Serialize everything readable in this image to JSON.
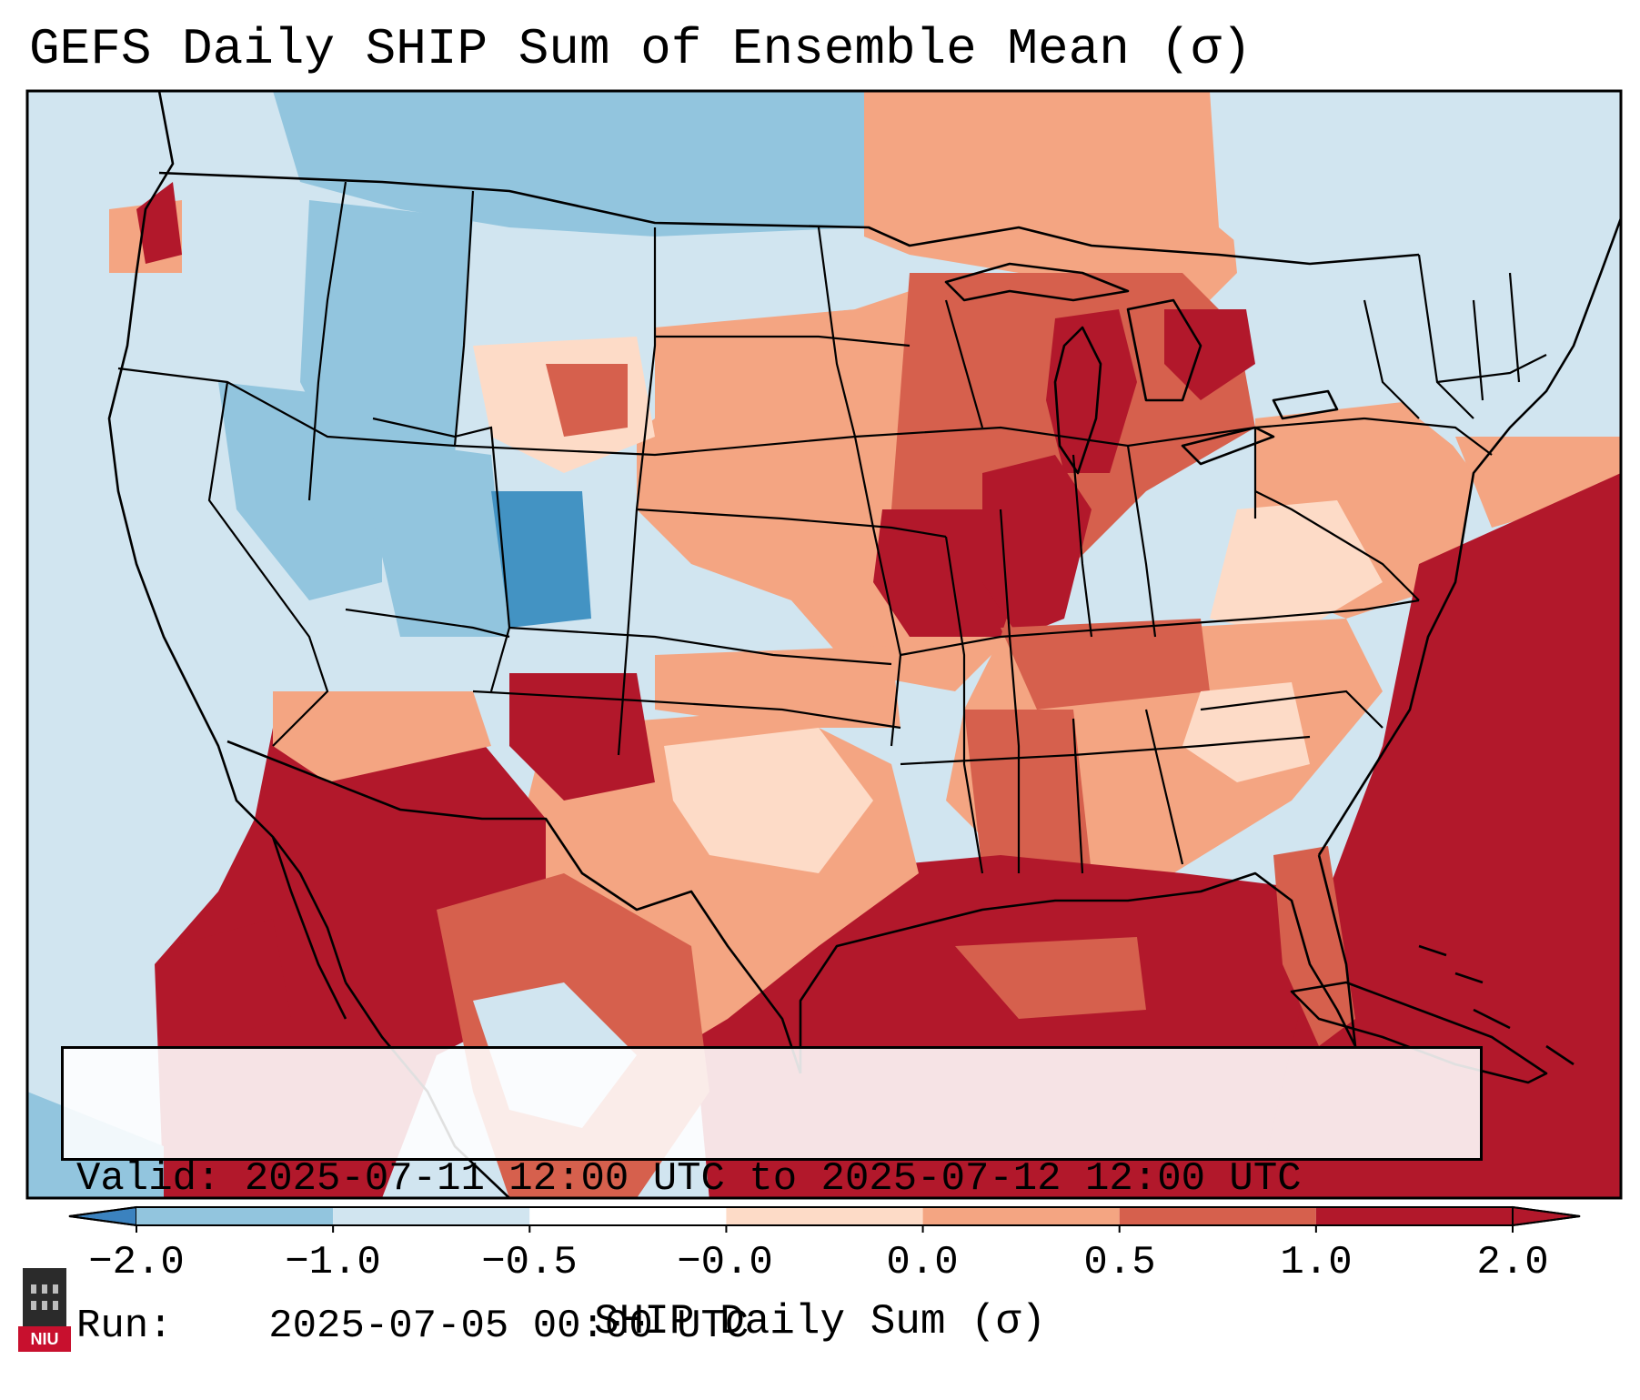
{
  "title": "GEFS Daily SHIP Sum of Ensemble Mean (σ)",
  "info": {
    "valid_label": "Valid:",
    "valid_value": "2025-07-11 12:00 UTC to 2025-07-12 12:00 UTC",
    "run_label": "Run:",
    "run_value": "2025-07-05 00:00 UTC"
  },
  "colorbar": {
    "label": "SHIP Daily Sum (σ)",
    "ticks": [
      "−2.0",
      "−1.0",
      "−0.5",
      "−0.0",
      "0.0",
      "0.5",
      "1.0",
      "2.0"
    ],
    "colors": [
      "#3b82bf",
      "#92c5de",
      "#d1e5f0",
      "#ffffff",
      "#fddbc7",
      "#f4a582",
      "#d6604d",
      "#b2182b"
    ],
    "extend": "both"
  },
  "logo": {
    "text": "NIU"
  },
  "map": {
    "region": "Continental United States",
    "projection": "Lambert conformal",
    "colors": {
      "strong_negative": "#4393c3",
      "negative": "#92c5de",
      "weak_negative": "#d1e5f0",
      "weak_positive": "#fddbc7",
      "positive": "#f4a582",
      "strong_positive": "#d6604d",
      "very_strong_positive": "#b2182b",
      "boundary": "#000000"
    }
  }
}
